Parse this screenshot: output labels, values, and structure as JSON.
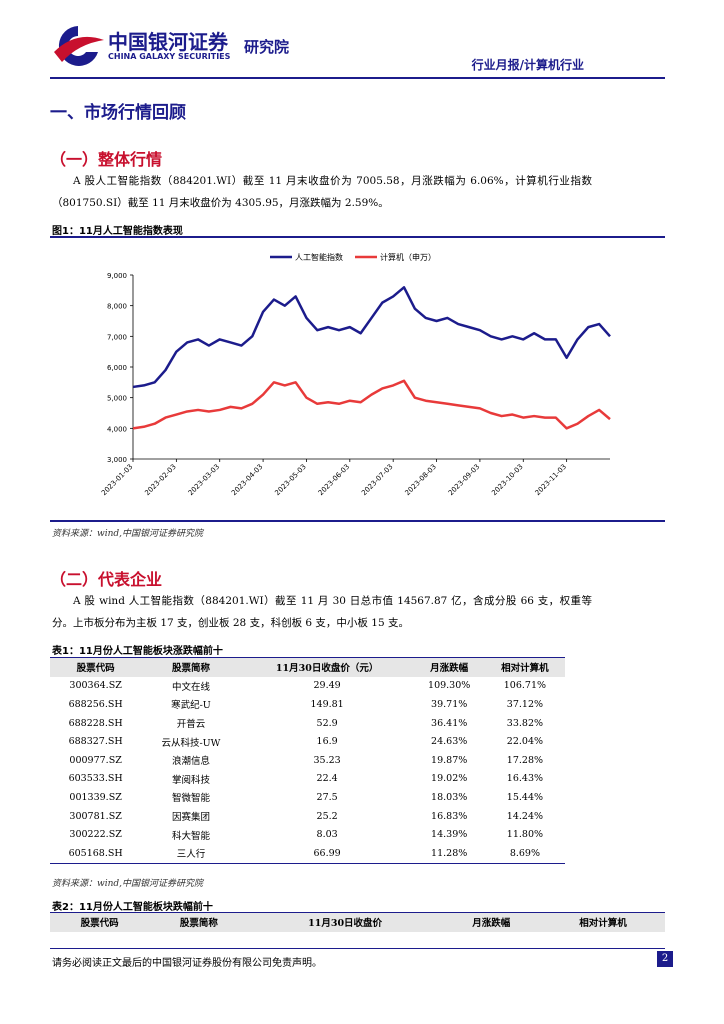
{
  "header": {
    "logo_cn": "中国银河证券",
    "logo_en": "CHINA GALAXY SECURITIES",
    "institute": "研究院",
    "category": "行业月报/计算机行业"
  },
  "section_title": "一、市场行情回顾",
  "sub1": {
    "title": "（一）整体行情",
    "text": "A 股人工智能指数（884201.WI）截至 11 月末收盘价为 7005.58，月涨跌幅为 6.06%，计算机行业指数（801750.SI）截至 11 月末收盘价为 4305.95，月涨跌幅为 2.59%。",
    "figure_caption": "图1：11月人工智能指数表现",
    "source": "资料来源：wind,中国银河证券研究院"
  },
  "chart_data": {
    "type": "line",
    "categories": [
      "2023-01-03",
      null,
      null,
      null,
      "2023-02-03",
      null,
      null,
      null,
      "2023-03-03",
      null,
      null,
      null,
      "2023-04-03",
      null,
      null,
      null,
      "2023-05-03",
      null,
      null,
      null,
      "2023-06-03",
      null,
      null,
      null,
      "2023-07-03",
      null,
      null,
      null,
      "2023-08-03",
      null,
      null,
      null,
      "2023-09-03",
      null,
      null,
      null,
      "2023-10-03",
      null,
      null,
      null,
      "2023-11-03",
      null,
      null,
      null,
      null
    ],
    "series": [
      {
        "name": "人工智能指数",
        "color": "#1c1c8c",
        "values": [
          5350,
          5400,
          5500,
          5900,
          6500,
          6800,
          6900,
          6700,
          6900,
          6800,
          6700,
          7000,
          7800,
          8200,
          8000,
          8300,
          7600,
          7200,
          7300,
          7200,
          7300,
          7100,
          7600,
          8100,
          8300,
          8600,
          7900,
          7600,
          7500,
          7600,
          7400,
          7300,
          7200,
          7000,
          6900,
          7000,
          6900,
          7100,
          6900,
          6900,
          6300,
          6900,
          7300,
          7400,
          7000
        ]
      },
      {
        "name": "计算机（申万）",
        "color": "#e83a3a",
        "values": [
          4000,
          4050,
          4150,
          4350,
          4450,
          4550,
          4600,
          4550,
          4600,
          4700,
          4650,
          4800,
          5100,
          5500,
          5400,
          5500,
          5000,
          4800,
          4850,
          4800,
          4900,
          4850,
          5100,
          5300,
          5400,
          5550,
          5000,
          4900,
          4850,
          4800,
          4750,
          4700,
          4650,
          4500,
          4400,
          4450,
          4350,
          4400,
          4350,
          4350,
          4000,
          4150,
          4400,
          4600,
          4300
        ]
      }
    ],
    "ylim": [
      3000,
      9000
    ],
    "yticks": [
      {
        "value": 3000,
        "label": "3,000"
      },
      {
        "value": 4000,
        "label": "4,000"
      },
      {
        "value": 5000,
        "label": "5,000"
      },
      {
        "value": 6000,
        "label": "6,000"
      },
      {
        "value": 7000,
        "label": "7,000"
      },
      {
        "value": 8000,
        "label": "8,000"
      },
      {
        "value": 9000,
        "label": "9,000"
      }
    ],
    "legend": "top"
  },
  "sub2": {
    "title": "（二）代表企业",
    "text": "A 股 wind 人工智能指数（884201.WI）截至 11 月 30 日总市值 14567.87 亿，含成分股 66 支，权重等分。上市板分布为主板 17 支，创业板 28 支，科创板 6 支，中小板 15 支。",
    "table_caption": "表1：11月份人工智能板块涨跌幅前十",
    "source": "资料来源：wind,中国银河证券研究院"
  },
  "table": {
    "headers": [
      "股票代码",
      "股票简称",
      "11月30日收盘价（元）",
      "月涨跌幅",
      "相对计算机"
    ],
    "rows": [
      [
        "300364.SZ",
        "中文在线",
        "29.49",
        "109.30%",
        "106.71%"
      ],
      [
        "688256.SH",
        "寒武纪-U",
        "149.81",
        "39.71%",
        "37.12%"
      ],
      [
        "688228.SH",
        "开普云",
        "52.9",
        "36.41%",
        "33.82%"
      ],
      [
        "688327.SH",
        "云从科技-UW",
        "16.9",
        "24.63%",
        "22.04%"
      ],
      [
        "000977.SZ",
        "浪潮信息",
        "35.23",
        "19.87%",
        "17.28%"
      ],
      [
        "603533.SH",
        "掌阅科技",
        "22.4",
        "19.02%",
        "16.43%"
      ],
      [
        "001339.SZ",
        "智微智能",
        "27.5",
        "18.03%",
        "15.44%"
      ],
      [
        "300781.SZ",
        "因赛集团",
        "25.2",
        "16.83%",
        "14.24%"
      ],
      [
        "300222.SZ",
        "科大智能",
        "8.03",
        "14.39%",
        "11.80%"
      ],
      [
        "605168.SH",
        "三人行",
        "66.99",
        "11.28%",
        "8.69%"
      ]
    ]
  },
  "table2": {
    "caption": "表2：11月份人工智能板块跌幅前十",
    "headers": [
      "股票代码",
      "股票简称",
      "11月30日收盘价",
      "月涨跌幅",
      "相对计算机"
    ]
  },
  "footer": {
    "disclaimer": "请务必阅读正文最后的中国银河证券股份有限公司免责声明。",
    "page": "2"
  }
}
